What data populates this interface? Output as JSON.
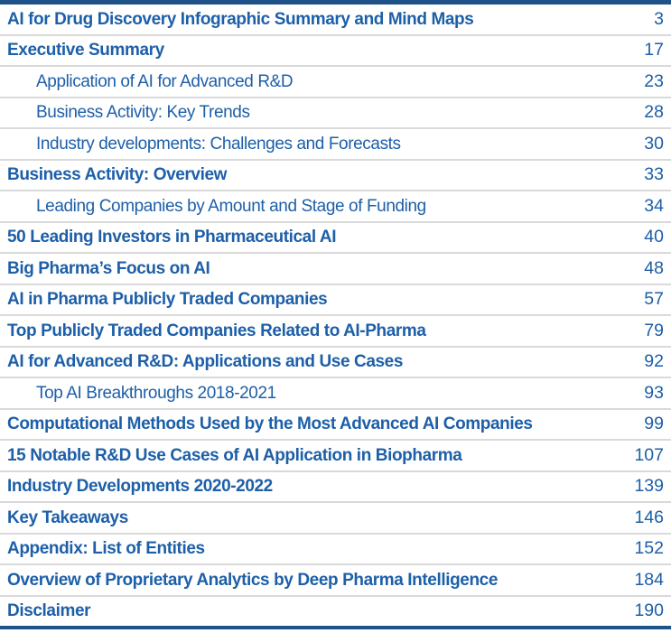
{
  "document": {
    "type": "table-of-contents",
    "colors": {
      "rule_navy": "#1e5288",
      "entry_blue": "#1d5fa8",
      "divider_gray": "#d9d9d9",
      "background": "#ffffff"
    },
    "toc": {
      "rows": [
        {
          "label": "AI for Drug Discovery Infographic Summary and Mind Maps",
          "page": "3",
          "level": 1
        },
        {
          "label": "Executive Summary",
          "page": "17",
          "level": 1
        },
        {
          "label": "Application of AI for Advanced R&D",
          "page": "23",
          "level": 2
        },
        {
          "label": "Business Activity: Key Trends",
          "page": "28",
          "level": 2
        },
        {
          "label": "Industry developments: Challenges and Forecasts",
          "page": "30",
          "level": 2
        },
        {
          "label": "Business Activity: Overview",
          "page": "33",
          "level": 1
        },
        {
          "label": "Leading Companies by Amount and Stage of Funding",
          "page": "34",
          "level": 2
        },
        {
          "label": "50 Leading Investors in Pharmaceutical AI",
          "page": "40",
          "level": 1
        },
        {
          "label": "Big Pharma’s Focus on AI",
          "page": "48",
          "level": 1
        },
        {
          "label": "AI in Pharma Publicly Traded Companies",
          "page": "57",
          "level": 1
        },
        {
          "label": "Top Publicly Traded Companies Related to AI-Pharma",
          "page": "79",
          "level": 1
        },
        {
          "label": "AI for Advanced R&D: Applications and Use Cases",
          "page": "92",
          "level": 1
        },
        {
          "label": "Top AI Breakthroughs 2018-2021",
          "page": "93",
          "level": 2
        },
        {
          "label": "Computational Methods Used by the Most Advanced AI Companies",
          "page": "99",
          "level": 1
        },
        {
          "label": "15 Notable R&D Use Cases of AI Application in Biopharma",
          "page": "107",
          "level": 1
        },
        {
          "label": "Industry Developments 2020-2022",
          "page": "139",
          "level": 1
        },
        {
          "label": "Key Takeaways",
          "page": "146",
          "level": 1
        },
        {
          "label": "Appendix: List of Entities",
          "page": "152",
          "level": 1
        },
        {
          "label": "Overview of Proprietary Analytics by Deep Pharma Intelligence",
          "page": "184",
          "level": 1
        },
        {
          "label": "Disclaimer",
          "page": "190",
          "level": 1
        }
      ]
    }
  }
}
